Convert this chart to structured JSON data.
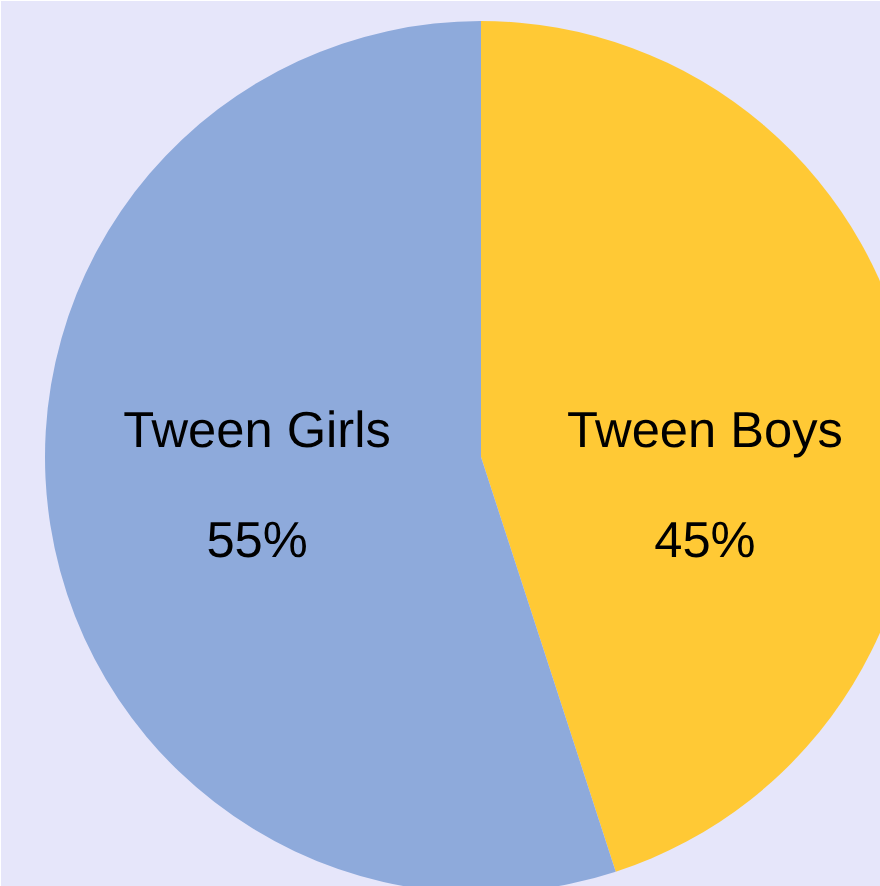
{
  "chart_data": {
    "type": "pie",
    "categories": [
      "Tween Boys",
      "Tween Girls"
    ],
    "values": [
      45,
      55
    ],
    "colors": [
      "#ffc935",
      "#8eaadb"
    ],
    "value_labels": [
      "45%",
      "55%"
    ]
  }
}
